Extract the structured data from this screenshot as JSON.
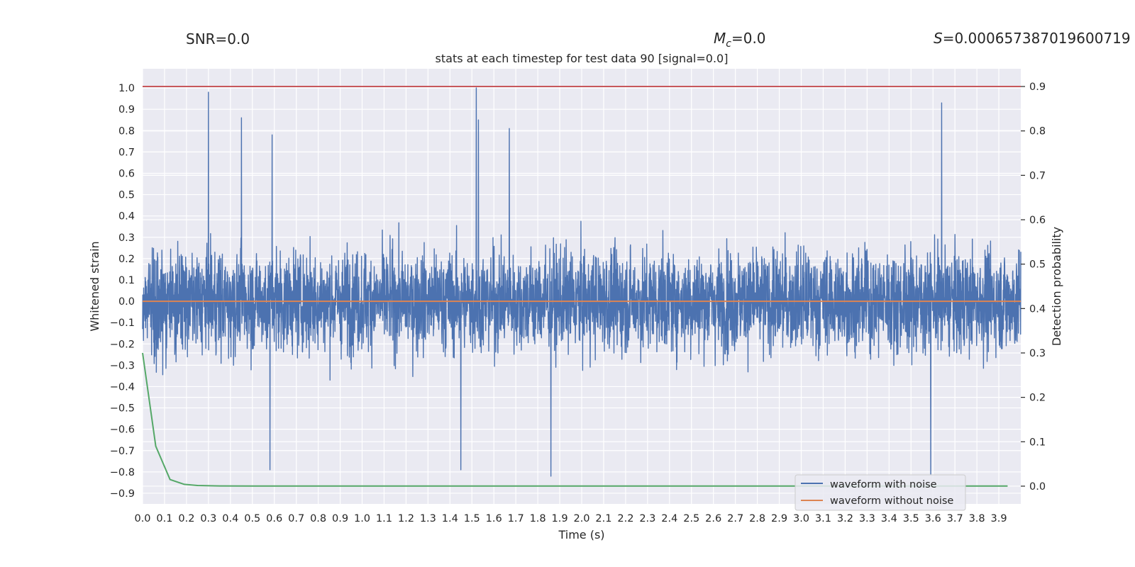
{
  "header": {
    "snr": "SNR=0.0",
    "mc_symbol": "M",
    "mc_sub": "c",
    "mc_value": "=0.0",
    "s_symbol": "S",
    "s_value": "=0.000657387019600719"
  },
  "chart_data": {
    "type": "line",
    "title": "stats at each timestep for test data 90 [signal=0.0]",
    "xlabel": "Time (s)",
    "ylabel": "Whitened strain",
    "y2label": "Detection probability",
    "xlim": [
      0.0,
      4.0
    ],
    "ylim": [
      -0.95,
      1.09
    ],
    "y2lim": [
      -0.04,
      0.94
    ],
    "xticks": [
      "0.0",
      "0.1",
      "0.2",
      "0.3",
      "0.4",
      "0.5",
      "0.6",
      "0.7",
      "0.8",
      "0.9",
      "1.0",
      "1.1",
      "1.2",
      "1.3",
      "1.4",
      "1.5",
      "1.6",
      "1.7",
      "1.8",
      "1.9",
      "2.0",
      "2.1",
      "2.2",
      "2.3",
      "2.4",
      "2.5",
      "2.6",
      "2.7",
      "2.8",
      "2.9",
      "3.0",
      "3.1",
      "3.2",
      "3.3",
      "3.4",
      "3.5",
      "3.6",
      "3.7",
      "3.8",
      "3.9"
    ],
    "yticks": [
      "1.0",
      "0.9",
      "0.8",
      "0.7",
      "0.6",
      "0.5",
      "0.4",
      "0.3",
      "0.2",
      "0.1",
      "0.0",
      "-0.1",
      "-0.2",
      "-0.3",
      "-0.4",
      "-0.5",
      "-0.6",
      "-0.7",
      "-0.8",
      "-0.9"
    ],
    "y2ticks": [
      "0.9",
      "0.8",
      "0.7",
      "0.6",
      "0.5",
      "0.4",
      "0.3",
      "0.2",
      "0.1",
      "0.0"
    ],
    "threshold": {
      "value": 0.9,
      "axis": "y2",
      "color": "#c44e52"
    },
    "series": [
      {
        "name": "waveform with noise",
        "axis": "y",
        "color": "#4c72b0",
        "sampling": "noise-like signal, 4096 samples over 4 s; peak values estimated",
        "envelope_max": 1.0,
        "envelope_min": -0.82,
        "peaks": [
          {
            "x": 0.3,
            "y": 0.98
          },
          {
            "x": 0.45,
            "y": 0.86
          },
          {
            "x": 0.59,
            "y": 0.78
          },
          {
            "x": 1.52,
            "y": 1.0
          },
          {
            "x": 1.53,
            "y": 0.85
          },
          {
            "x": 1.67,
            "y": 0.81
          },
          {
            "x": 3.64,
            "y": 0.93
          },
          {
            "x": 0.58,
            "y": -0.79
          },
          {
            "x": 1.86,
            "y": -0.82
          },
          {
            "x": 3.59,
            "y": -0.81
          },
          {
            "x": 1.45,
            "y": -0.79
          }
        ]
      },
      {
        "name": "waveform without noise",
        "axis": "y",
        "color": "#dd8452",
        "x": [
          0.0,
          4.0
        ],
        "y": [
          0.0,
          0.0
        ]
      },
      {
        "name": "detection probability",
        "axis": "y2",
        "color": "#55a868",
        "x": [
          0.0,
          0.06,
          0.125,
          0.19,
          0.25,
          0.35,
          0.5,
          1.0,
          2.0,
          3.0,
          3.94
        ],
        "y": [
          0.3,
          0.09,
          0.015,
          0.004,
          0.0015,
          0.0005,
          0.0004,
          0.0003,
          0.0003,
          0.0003,
          0.0003
        ]
      }
    ],
    "legend": {
      "placement": "lower-right",
      "entries": [
        {
          "label": "waveform with noise",
          "color": "#4c72b0"
        },
        {
          "label": "waveform without noise",
          "color": "#dd8452"
        }
      ]
    }
  }
}
